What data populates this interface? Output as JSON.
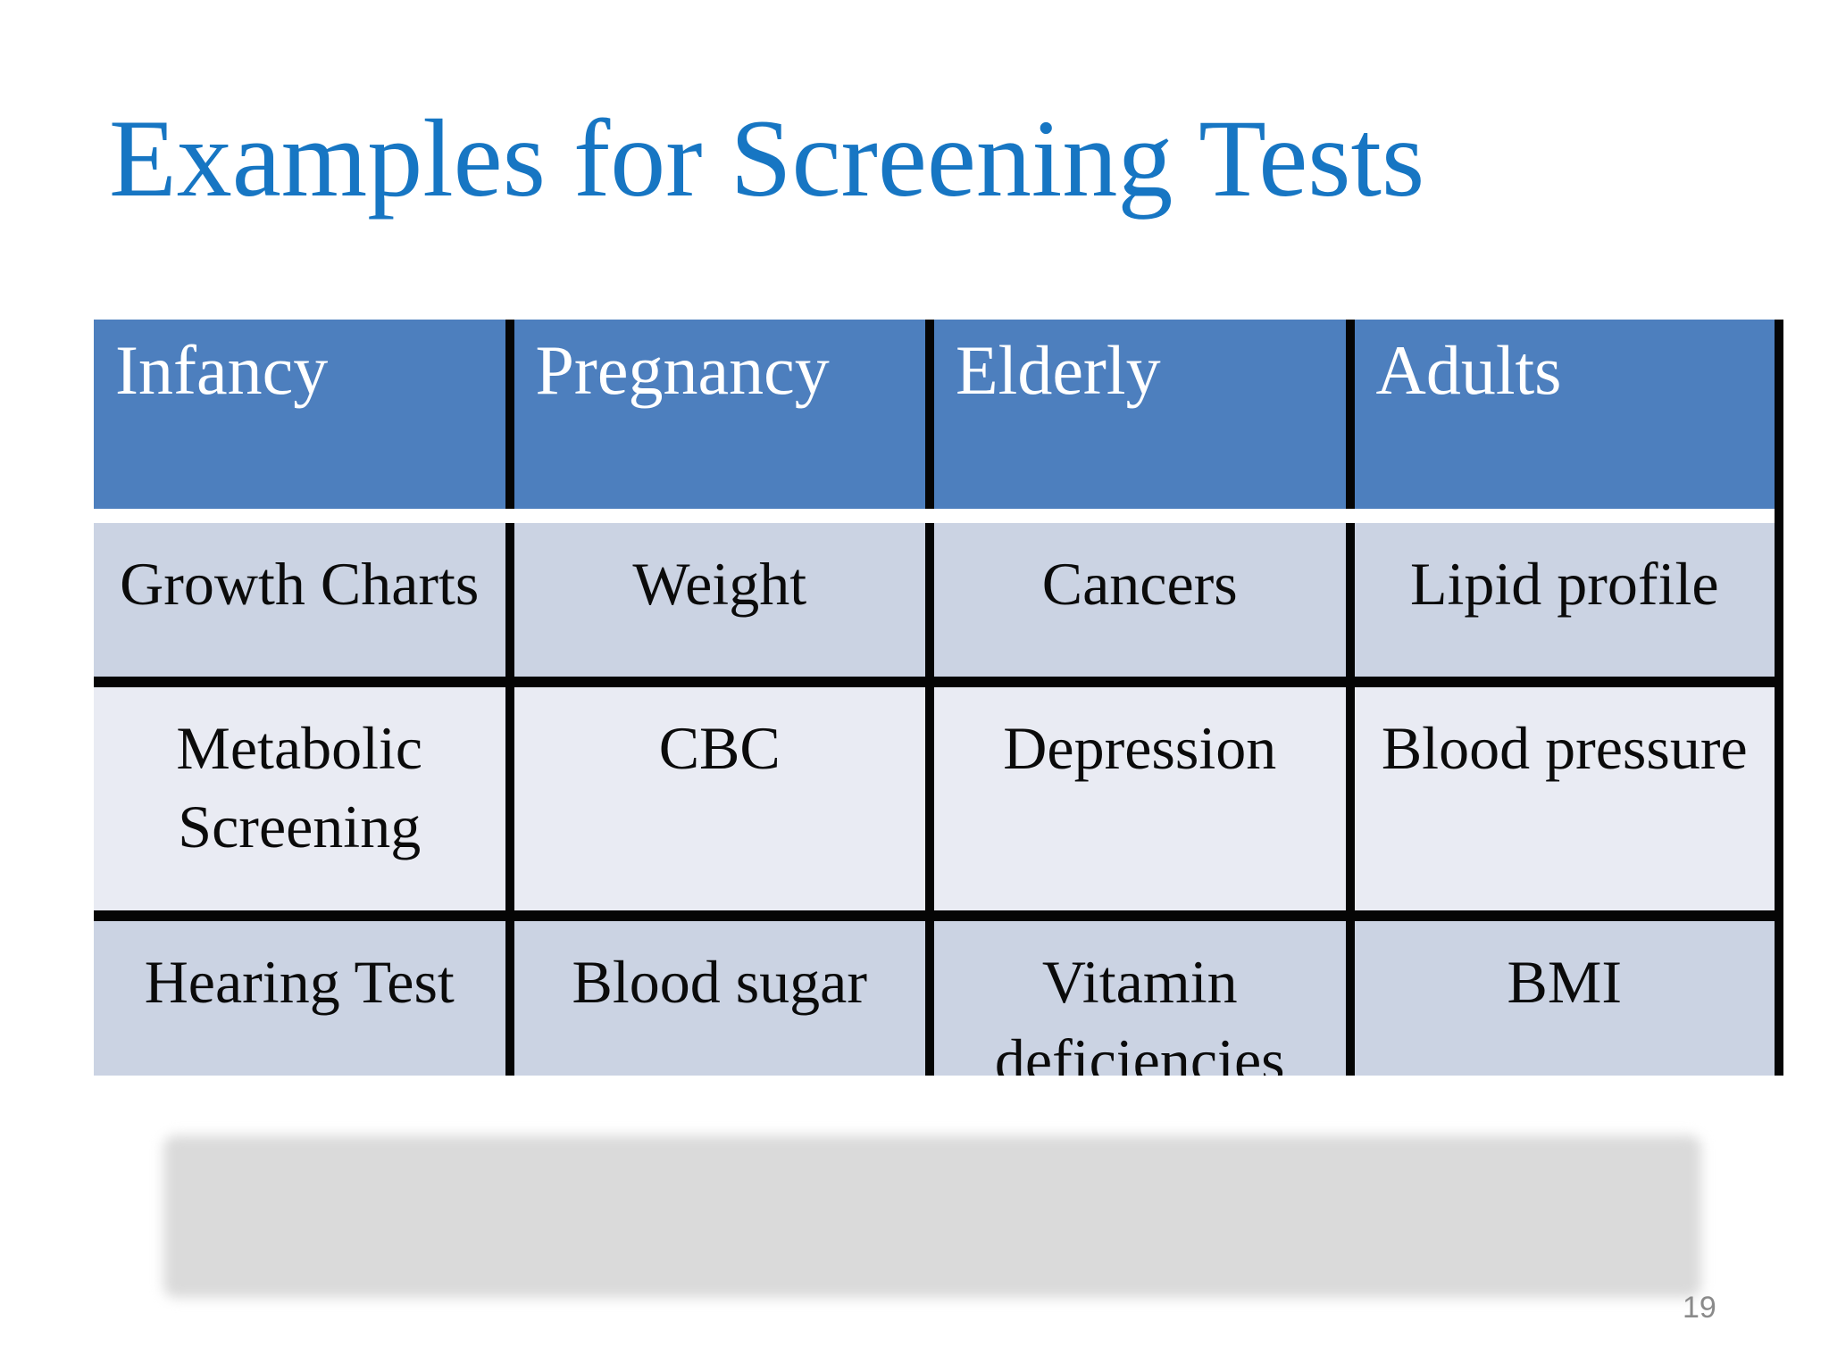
{
  "slide": {
    "title": "Examples for Screening Tests",
    "page_number": "19",
    "colors": {
      "page_bg": "#ffffff",
      "title_color": "#1776c3",
      "header_bg": "#4d7fbe",
      "header_text": "#ffffff",
      "band_dark": "#cbd3e3",
      "band_light": "#e9ebf3",
      "border_color": "#050505",
      "placeholder_color": "#dadada",
      "pagenum_color": "#8a8a8a"
    },
    "table": {
      "columns": [
        "Infancy",
        "Pregnancy",
        "Elderly",
        "Adults"
      ],
      "rows": [
        [
          "Growth Charts",
          "Weight",
          "Cancers",
          "Lipid profile"
        ],
        [
          "Metabolic Screening",
          "CBC",
          "Depression",
          "Blood pressure"
        ],
        [
          "Hearing Test",
          "Blood sugar",
          "Vitamin deficiencies",
          "BMI"
        ]
      ]
    }
  }
}
